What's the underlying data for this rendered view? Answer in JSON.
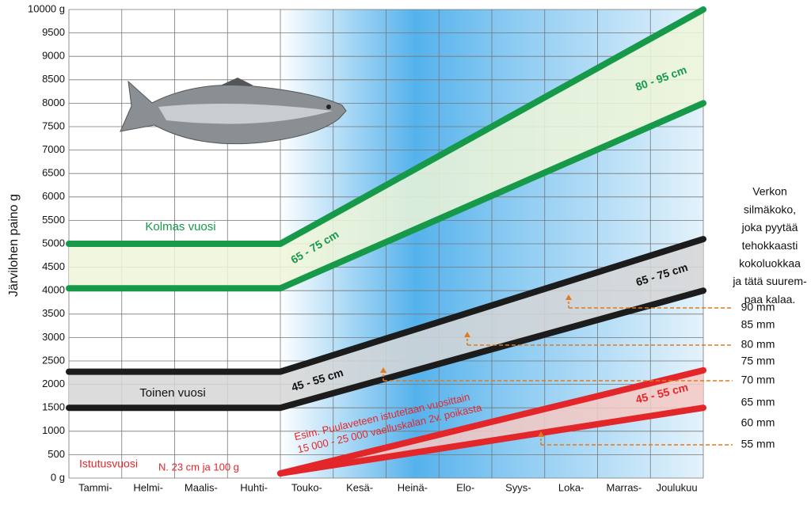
{
  "chart_data": {
    "type": "line",
    "y_label": "Järvilohen paino g",
    "categories": [
      "Tammi-",
      "Helmi-",
      "Maalis-",
      "Huhti-",
      "Touko-",
      "Kesä-",
      "Heinä-",
      "Elo-",
      "Syys-",
      "Loka-",
      "Marras-",
      "Joulukuu"
    ],
    "xlim": [
      0,
      12
    ],
    "ylim": [
      0,
      10000
    ],
    "yticks": [
      {
        "value": 0,
        "label": "0 g"
      },
      500,
      1000,
      1500,
      2000,
      2500,
      3000,
      3500,
      4000,
      4500,
      5000,
      5500,
      6000,
      6500,
      7000,
      7500,
      8000,
      8500,
      9000,
      9500,
      {
        "value": 10000,
        "label": "10000 g"
      }
    ],
    "grid": true,
    "series": [
      {
        "color": "#17994a",
        "band_color": "#eef6d8",
        "x": [
          0,
          4,
          12
        ],
        "values": [
          5000,
          5000,
          10000
        ]
      },
      {
        "color": "#17994a",
        "x": [
          0,
          4,
          12
        ],
        "values": [
          4050,
          4050,
          8000
        ]
      },
      {
        "color": "#1c1c1c",
        "band_color": "#d6d6d6",
        "x": [
          0,
          4,
          12
        ],
        "values": [
          2270,
          2270,
          5100
        ]
      },
      {
        "color": "#1c1c1c",
        "x": [
          0,
          4,
          12
        ],
        "values": [
          1500,
          1500,
          4000
        ]
      },
      {
        "color": "#e3262a",
        "band_color": "#f6c9c3",
        "x": [
          4,
          12
        ],
        "values": [
          100,
          2300
        ]
      },
      {
        "color": "#e3262a",
        "x": [
          4,
          12
        ],
        "values": [
          100,
          1500
        ]
      }
    ],
    "annotations": {
      "third_year": "Kolmas vuosi",
      "second_year": "Toinen vuosi",
      "stocking_year": "Istutusvuosi",
      "stocking_size": "N. 23 cm ja 100 g",
      "stocking_note_1": "Esim. Puulaveteen istutetaan vuosittain",
      "stocking_note_2": "15 000 - 25 000 vaelluskalan 2v. poikasta",
      "band_third_late": "80 - 95 cm",
      "band_third_early": "65 - 75 cm",
      "band_second_late": "65 - 75 cm",
      "band_second_early": "45 - 55 cm",
      "band_first": "45 - 55 cm"
    },
    "mesh_title": [
      "Verkon",
      "silmäkoko,",
      "joka pyytää",
      "tehokkaasti",
      "kokoluokkaa",
      "ja tätä suurem-",
      "paa kalaa."
    ],
    "mesh_sizes": [
      "90 mm",
      "85 mm",
      "80 mm",
      "75 mm",
      "70 mm",
      "65 mm",
      "60 mm",
      "55 mm"
    ]
  }
}
